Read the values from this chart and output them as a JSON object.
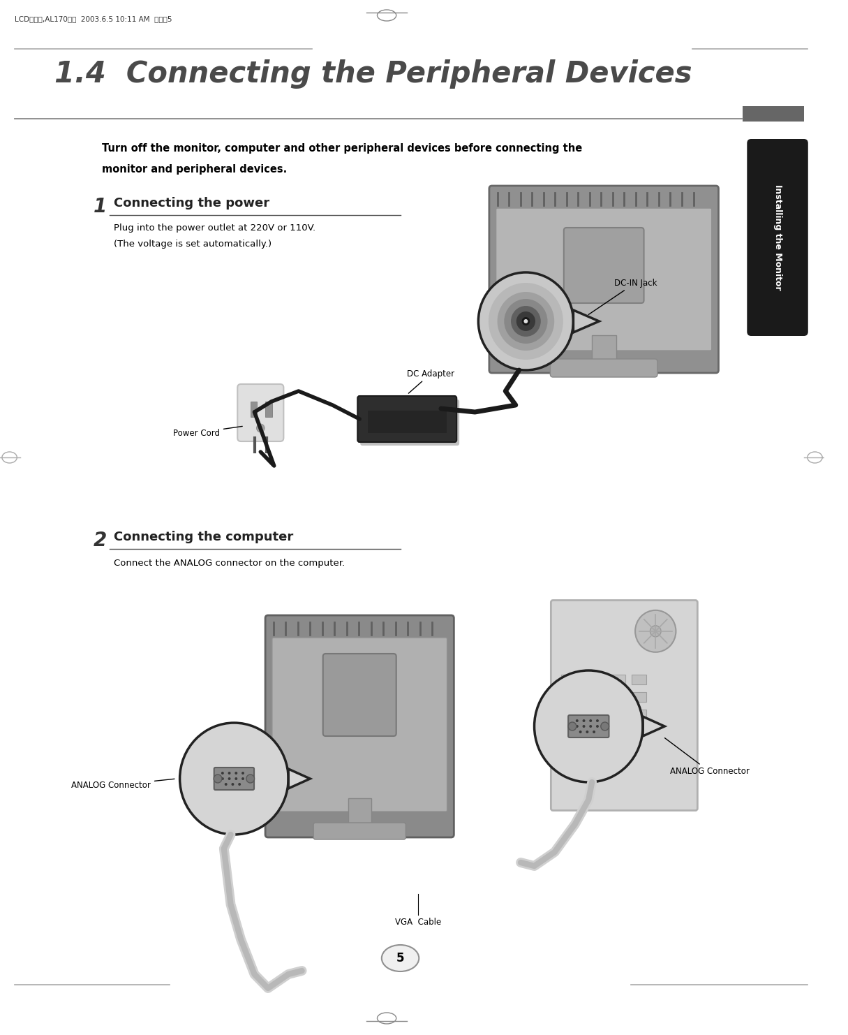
{
  "page_bg": "#ffffff",
  "header_text": "LCD오니터,AL170영문  2003.6.5 10:11 AM  페이지5",
  "header_fontsize": 7.5,
  "title": "1.4  Connecting the Peripheral Devices",
  "title_fontsize": 30,
  "title_color": "#4a4a4a",
  "sidebar_text": "Installing the Monitor",
  "sidebar_bg": "#1a1a1a",
  "sidebar_text_color": "#ffffff",
  "warning_line1": "Turn off the monitor, computer and other peripheral devices before connecting the",
  "warning_line2": "monitor and peripheral devices.",
  "warning_fontsize": 10.5,
  "step1_number": "1",
  "step1_title": "Connecting the power",
  "step1_text_line1": "Plug into the power outlet at 220V or 110V.",
  "step1_text_line2": "(The voltage is set automatically.)",
  "step2_number": "2",
  "step2_title": "Connecting the computer",
  "step2_text": "Connect the ANALOG connector on the computer.",
  "label_dc_in": "DC-IN Jack",
  "label_dc_adapter": "DC Adapter",
  "label_power_cord": "Power Cord",
  "label_analog1": "ANALOG Connector",
  "label_analog2": "ANALOG Connector",
  "label_vga": "VGA  Cable",
  "page_number": "5",
  "step_title_fontsize": 13,
  "step_number_fontsize": 20,
  "body_fontsize": 9.5,
  "label_fontsize": 8.5
}
